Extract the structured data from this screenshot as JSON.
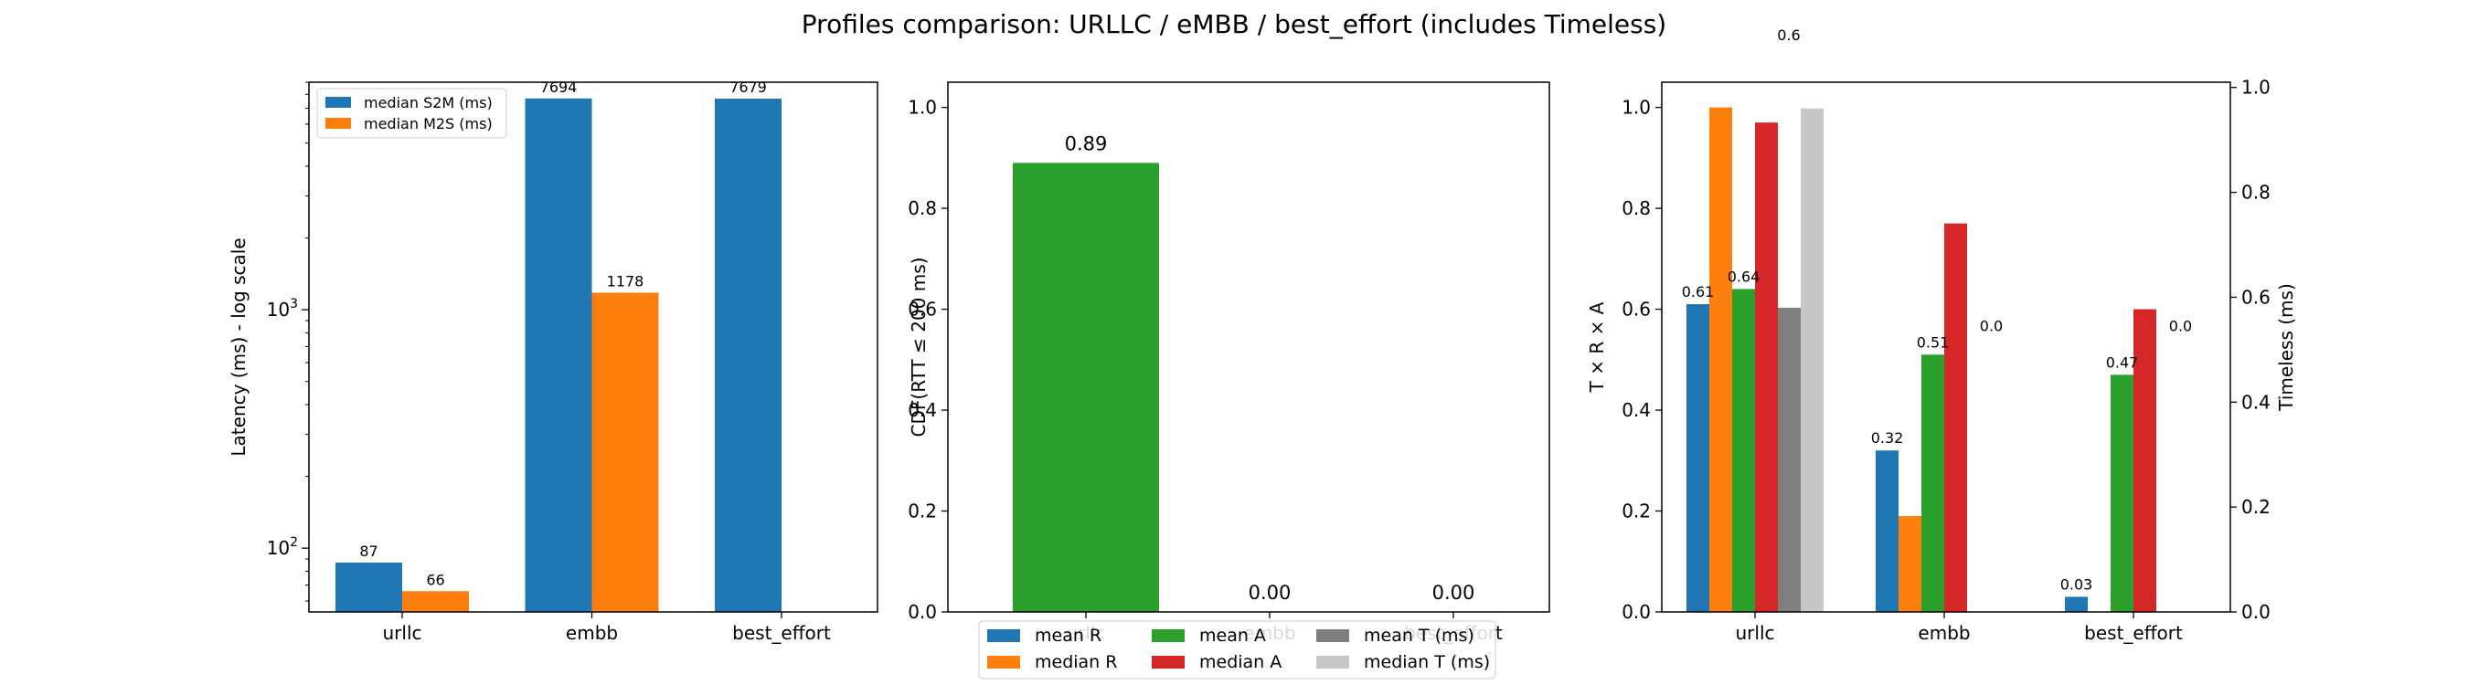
{
  "title": "Profiles comparison: URLLC / eMBB / best_effort (includes Timeless)",
  "colors": {
    "blue": "#1f77b4",
    "orange": "#ff7f0e",
    "green": "#2ca02c",
    "red": "#d62728",
    "gray": "#7f7f7f",
    "lightgray": "#c7c7c7"
  },
  "chart_data": [
    {
      "type": "bar",
      "categories": [
        "urllc",
        "embb",
        "best_effort"
      ],
      "series": [
        {
          "name": "median S2M (ms)",
          "values": [
            87,
            7694,
            7679
          ]
        },
        {
          "name": "median M2S (ms)",
          "values": [
            66,
            1178,
            null
          ]
        }
      ],
      "data_labels": [
        [
          "87",
          "7694",
          "7679"
        ],
        [
          "66",
          "1178",
          ""
        ]
      ],
      "ylabel": "Latency (ms) - log scale",
      "yscale": "log",
      "ylim": [
        54,
        9000
      ],
      "yticks": [
        {
          "v": 100,
          "label": "10",
          "exp": "2"
        },
        {
          "v": 1000,
          "label": "10",
          "exp": "3"
        }
      ],
      "legend_position": "upper-left"
    },
    {
      "type": "bar",
      "categories": [
        "urllc",
        "embb",
        "best_effort"
      ],
      "values": [
        0.89,
        0.0,
        0.0
      ],
      "data_labels": [
        "0.89",
        "0.00",
        "0.00"
      ],
      "ylabel": "CDF(RTT ≤ 200 ms)",
      "ylim": [
        0,
        1.05
      ],
      "yticks": [
        "0.0",
        "0.2",
        "0.4",
        "0.6",
        "0.8",
        "1.0"
      ]
    },
    {
      "type": "bar",
      "categories": [
        "urllc",
        "embb",
        "best_effort"
      ],
      "series": [
        {
          "name": "mean R",
          "values": [
            0.61,
            0.32,
            0.03
          ],
          "axis": "left"
        },
        {
          "name": "median R",
          "values": [
            1.0,
            0.19,
            null
          ],
          "axis": "left"
        },
        {
          "name": "mean A",
          "values": [
            0.64,
            0.51,
            0.47
          ],
          "axis": "left"
        },
        {
          "name": "median A",
          "values": [
            0.97,
            0.77,
            0.6
          ],
          "axis": "left"
        },
        {
          "name": "mean T (ms)",
          "values": [
            0.58,
            0.0,
            0.0
          ],
          "axis": "right"
        },
        {
          "name": "median T (ms)",
          "values": [
            0.96,
            null,
            null
          ],
          "axis": "right"
        }
      ],
      "data_labels": [
        {
          "series": 0,
          "cat": 0,
          "text": "0.61"
        },
        {
          "series": 0,
          "cat": 1,
          "text": "0.32"
        },
        {
          "series": 0,
          "cat": 2,
          "text": "0.03"
        },
        {
          "series": 2,
          "cat": 0,
          "text": "0.64"
        },
        {
          "series": 2,
          "cat": 1,
          "text": "0.51"
        },
        {
          "series": 2,
          "cat": 2,
          "text": "0.47"
        },
        {
          "series": 4,
          "cat": 1,
          "text": "0.0"
        },
        {
          "series": 4,
          "cat": 2,
          "text": "0.0"
        },
        {
          "series": 4,
          "cat": 0,
          "text": "0.6"
        }
      ],
      "ylabel": "T × R × A",
      "ylim": [
        0,
        1.05
      ],
      "yticks": [
        "0.0",
        "0.2",
        "0.4",
        "0.6",
        "0.8",
        "1.0"
      ],
      "y2label": "Timeless (ms)",
      "y2lim": [
        0,
        1.01
      ],
      "y2ticks": [
        "0.0",
        "0.2",
        "0.4",
        "0.6",
        "0.8",
        "1.0"
      ]
    }
  ],
  "shared_legend": {
    "position": "lower-center",
    "entries": [
      "mean R",
      "median R",
      "mean A",
      "median A",
      "mean T (ms)",
      "median T (ms)"
    ]
  }
}
